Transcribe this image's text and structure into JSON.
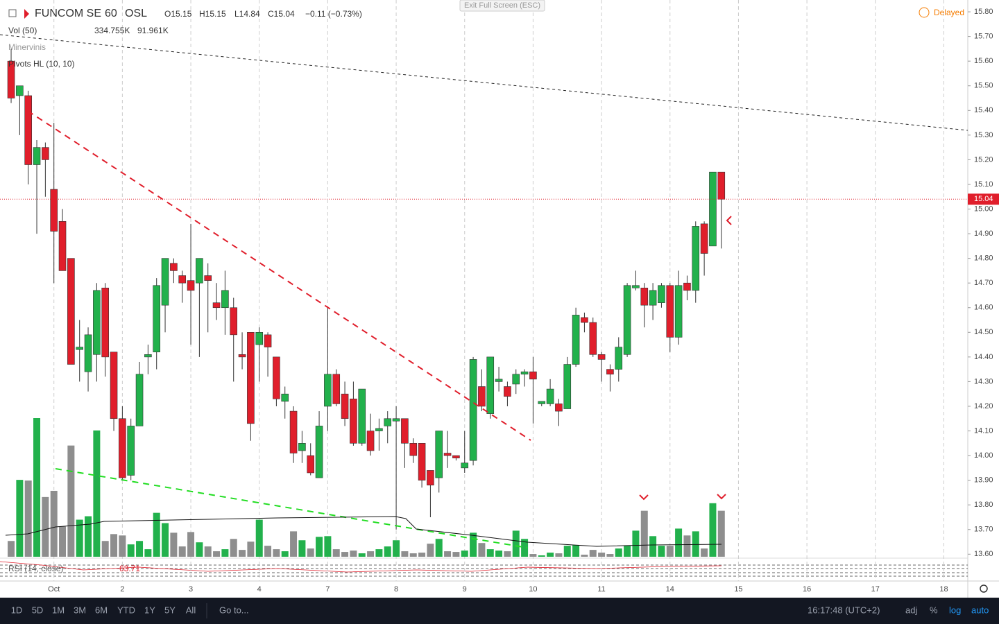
{
  "header": {
    "symbol": "FUNCOM SE",
    "interval": "60",
    "exchange": "OSL",
    "open": "O15.15",
    "high": "H15.15",
    "low": "L14.84",
    "close": "C15.04",
    "change": "−0.11 (−0.73%)",
    "status": "Delayed",
    "exit": "Exit Full Screen (ESC)"
  },
  "indicators": {
    "vol": "Vol (50)",
    "vol_value": "334.755K",
    "vol_ma": "91.961K",
    "minervini": "Minervinis",
    "pivots": "Pivots HL (10, 10)",
    "rsi": "RSI (14, close)",
    "rsi_value": "63.71"
  },
  "toolbar": {
    "ranges": [
      "1D",
      "5D",
      "1M",
      "3M",
      "6M",
      "YTD",
      "1Y",
      "5Y",
      "All"
    ],
    "goto": "Go to...",
    "time": "16:17:48 (UTC+2)",
    "options": [
      "adj",
      "%",
      "log",
      "auto"
    ]
  },
  "chart_data": {
    "type": "candlestick",
    "up_color": "#22b14c",
    "down_color": "#e01e2b",
    "volume_down_color": "#8e8e8e",
    "ohlc": [
      [
        15.6,
        15.65,
        15.43,
        15.45
      ],
      [
        15.46,
        15.5,
        15.3,
        15.5
      ],
      [
        15.46,
        15.48,
        15.1,
        15.18
      ],
      [
        15.18,
        15.28,
        14.9,
        15.25
      ],
      [
        15.25,
        15.27,
        15.05,
        15.2
      ],
      [
        15.08,
        15.35,
        14.7,
        14.91
      ],
      [
        14.95,
        15.0,
        14.75,
        14.75
      ],
      [
        14.8,
        14.8,
        14.37,
        14.37
      ],
      [
        14.43,
        14.55,
        14.3,
        14.44
      ],
      [
        14.34,
        14.52,
        14.26,
        14.49
      ],
      [
        14.41,
        14.7,
        14.3,
        14.67
      ],
      [
        14.68,
        14.7,
        14.32,
        14.4
      ],
      [
        14.42,
        14.42,
        14.1,
        14.15
      ],
      [
        14.15,
        14.2,
        13.9,
        13.91
      ],
      [
        13.92,
        14.15,
        13.9,
        14.12
      ],
      [
        14.12,
        14.38,
        14.12,
        14.33
      ],
      [
        14.4,
        14.45,
        14.33,
        14.41
      ],
      [
        14.42,
        14.72,
        14.35,
        14.69
      ],
      [
        14.61,
        14.8,
        14.5,
        14.8
      ],
      [
        14.78,
        14.8,
        14.7,
        14.75
      ],
      [
        14.73,
        14.75,
        14.62,
        14.7
      ],
      [
        14.71,
        14.94,
        14.45,
        14.67
      ],
      [
        14.7,
        14.8,
        14.4,
        14.8
      ],
      [
        14.73,
        14.78,
        14.5,
        14.71
      ],
      [
        14.62,
        14.7,
        14.55,
        14.6
      ],
      [
        14.6,
        14.75,
        14.49,
        14.67
      ],
      [
        14.6,
        14.64,
        14.3,
        14.49
      ],
      [
        14.41,
        14.5,
        14.35,
        14.4
      ],
      [
        14.5,
        14.5,
        14.06,
        14.13
      ],
      [
        14.45,
        14.52,
        14.3,
        14.5
      ],
      [
        14.49,
        14.5,
        14.32,
        14.44
      ],
      [
        14.4,
        14.4,
        14.2,
        14.23
      ],
      [
        14.22,
        14.28,
        14.15,
        14.25
      ],
      [
        14.18,
        14.2,
        13.97,
        14.01
      ],
      [
        14.02,
        14.1,
        13.97,
        14.05
      ],
      [
        14.0,
        14.05,
        13.92,
        13.93
      ],
      [
        13.91,
        14.18,
        13.91,
        14.12
      ],
      [
        14.2,
        14.6,
        14.1,
        14.33
      ],
      [
        14.33,
        14.35,
        14.2,
        14.21
      ],
      [
        14.25,
        14.3,
        14.12,
        14.15
      ],
      [
        14.23,
        14.3,
        14.04,
        14.05
      ],
      [
        14.05,
        14.27,
        14.04,
        14.27
      ],
      [
        14.1,
        14.17,
        14.0,
        14.02
      ],
      [
        14.1,
        14.15,
        14.02,
        14.11
      ],
      [
        14.12,
        14.18,
        14.05,
        14.15
      ],
      [
        14.14,
        14.2,
        13.7,
        14.15
      ],
      [
        14.15,
        14.15,
        13.95,
        14.05
      ],
      [
        14.05,
        14.07,
        13.97,
        14.0
      ],
      [
        14.05,
        14.05,
        13.87,
        13.9
      ],
      [
        13.94,
        13.94,
        13.75,
        13.88
      ],
      [
        13.91,
        14.1,
        13.85,
        14.1
      ],
      [
        14.01,
        14.1,
        13.95,
        14.0
      ],
      [
        14.0,
        14.0,
        13.98,
        13.99
      ],
      [
        13.95,
        14.1,
        13.93,
        13.97
      ],
      [
        13.98,
        14.4,
        13.96,
        14.39
      ],
      [
        14.28,
        14.35,
        14.18,
        14.2
      ],
      [
        14.17,
        14.4,
        14.15,
        14.4
      ],
      [
        14.3,
        14.36,
        14.26,
        14.31
      ],
      [
        14.28,
        14.3,
        14.2,
        14.24
      ],
      [
        14.29,
        14.35,
        14.25,
        14.33
      ],
      [
        14.33,
        14.35,
        14.28,
        14.34
      ],
      [
        14.34,
        14.4,
        14.13,
        14.31
      ],
      [
        14.21,
        14.22,
        14.2,
        14.22
      ],
      [
        14.21,
        14.31,
        14.2,
        14.27
      ],
      [
        14.21,
        14.23,
        14.12,
        14.18
      ],
      [
        14.19,
        14.4,
        14.19,
        14.37
      ],
      [
        14.37,
        14.6,
        14.36,
        14.57
      ],
      [
        14.56,
        14.58,
        14.5,
        14.54
      ],
      [
        14.54,
        14.56,
        14.4,
        14.41
      ],
      [
        14.41,
        14.42,
        14.3,
        14.39
      ],
      [
        14.35,
        14.37,
        14.26,
        14.33
      ],
      [
        14.35,
        14.48,
        14.3,
        14.44
      ],
      [
        14.41,
        14.7,
        14.4,
        14.69
      ],
      [
        14.68,
        14.75,
        14.67,
        14.69
      ],
      [
        14.68,
        14.7,
        14.52,
        14.61
      ],
      [
        14.61,
        14.7,
        14.55,
        14.67
      ],
      [
        14.62,
        14.7,
        14.6,
        14.69
      ],
      [
        14.69,
        14.7,
        14.42,
        14.48
      ],
      [
        14.48,
        14.75,
        14.45,
        14.69
      ],
      [
        14.7,
        14.73,
        14.63,
        14.67
      ],
      [
        14.67,
        14.95,
        14.62,
        14.93
      ],
      [
        14.94,
        14.95,
        14.73,
        14.82
      ],
      [
        14.85,
        15.15,
        14.85,
        15.15
      ],
      [
        15.15,
        15.15,
        14.84,
        15.04
      ]
    ],
    "volume": [
      115,
      560,
      555,
      1010,
      435,
      480,
      220,
      810,
      270,
      295,
      920,
      115,
      165,
      155,
      90,
      115,
      55,
      320,
      245,
      175,
      75,
      180,
      105,
      75,
      40,
      55,
      130,
      50,
      110,
      270,
      80,
      55,
      40,
      185,
      120,
      60,
      145,
      150,
      55,
      35,
      45,
      25,
      40,
      55,
      75,
      120,
      40,
      25,
      30,
      95,
      130,
      40,
      35,
      45,
      175,
      100,
      55,
      45,
      40,
      190,
      130,
      20,
      10,
      30,
      25,
      80,
      85,
      15,
      50,
      30,
      20,
      60,
      80,
      190,
      335,
      150,
      80,
      80,
      205,
      155,
      185,
      60,
      390,
      335
    ],
    "last_price": 15.04,
    "xlim": [
      -1.3,
      111.8
    ],
    "xticks": [
      {
        "value": 5,
        "label": "Oct"
      },
      {
        "value": 13,
        "label": "2"
      },
      {
        "value": 21,
        "label": "3"
      },
      {
        "value": 29,
        "label": "4"
      },
      {
        "value": 37,
        "label": "7"
      },
      {
        "value": 45,
        "label": "8"
      },
      {
        "value": 53,
        "label": "9"
      },
      {
        "value": 61,
        "label": "10"
      },
      {
        "value": 69,
        "label": "11"
      },
      {
        "value": 77,
        "label": "14"
      },
      {
        "value": 85,
        "label": "15"
      },
      {
        "value": 93,
        "label": "16"
      },
      {
        "value": 101,
        "label": "17"
      },
      {
        "value": 109,
        "label": "18"
      }
    ],
    "ylim": [
      13.584,
      15.848
    ],
    "yticks": [
      {
        "value": 15.8,
        "label": "15.80"
      },
      {
        "value": 15.7,
        "label": "15.70"
      },
      {
        "value": 15.6,
        "label": "15.60"
      },
      {
        "value": 15.5,
        "label": "15.50"
      },
      {
        "value": 15.4,
        "label": "15.40"
      },
      {
        "value": 15.3,
        "label": "15.30"
      },
      {
        "value": 15.2,
        "label": "15.20"
      },
      {
        "value": 15.1,
        "label": "15.10"
      },
      {
        "value": 15.0,
        "label": "15.00"
      },
      {
        "value": 14.9,
        "label": "14.90"
      },
      {
        "value": 14.8,
        "label": "14.80"
      },
      {
        "value": 14.7,
        "label": "14.70"
      },
      {
        "value": 14.6,
        "label": "14.60"
      },
      {
        "value": 14.5,
        "label": "14.50"
      },
      {
        "value": 14.4,
        "label": "14.40"
      },
      {
        "value": 14.3,
        "label": "14.30"
      },
      {
        "value": 14.2,
        "label": "14.20"
      },
      {
        "value": 14.1,
        "label": "14.10"
      },
      {
        "value": 14.0,
        "label": "14.00"
      },
      {
        "value": 13.9,
        "label": "13.90"
      },
      {
        "value": 13.8,
        "label": "13.80"
      },
      {
        "value": 13.7,
        "label": "13.70"
      },
      {
        "value": 13.6,
        "label": "13.60"
      }
    ],
    "grid": "x"
  }
}
